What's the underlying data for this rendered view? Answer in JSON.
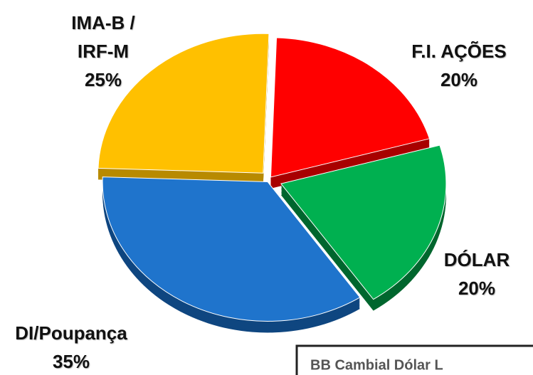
{
  "chart_data": {
    "type": "pie",
    "categories": [
      "F.I. AÇÕES",
      "DÓLAR",
      "DI/Poupança",
      "IMA-B / IRF-M"
    ],
    "values": [
      20,
      20,
      35,
      25
    ],
    "value_labels": [
      "20%",
      "20%",
      "35%",
      "25%"
    ],
    "colors": [
      "#ff0000",
      "#00b050",
      "#1f74cc",
      "#ffc000"
    ],
    "depth_colors": [
      "#a80000",
      "#00662e",
      "#0f4680",
      "#b88a00"
    ]
  },
  "caption_box": "BB Cambial Dólar L"
}
